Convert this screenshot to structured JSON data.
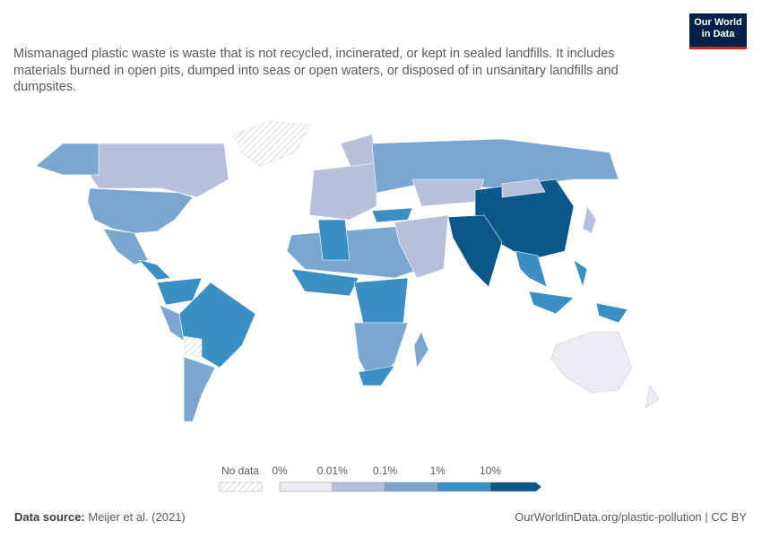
{
  "logo": {
    "line1": "Our World",
    "line2": "in Data"
  },
  "subtitle": "Mismanaged plastic waste is waste that is not recycled, incinerated, or kept in sealed landfills. It includes materials burned in open pits, dumped into seas or open waters, or disposed of in unsanitary landfills and dumpsites.",
  "legend": {
    "no_data": "No data",
    "labels": [
      "0%",
      "0.01%",
      "0.1%",
      "1%",
      "10%"
    ],
    "colors": [
      "#ecedf4",
      "#b6c0dc",
      "#7aa7d0",
      "#3a8fc4",
      "#0b5789"
    ]
  },
  "footer": {
    "source_label": "Data source:",
    "source": "Meijer et al. (2021)",
    "link": "OurWorldinData.org/plastic-pollution | CC BY"
  }
}
